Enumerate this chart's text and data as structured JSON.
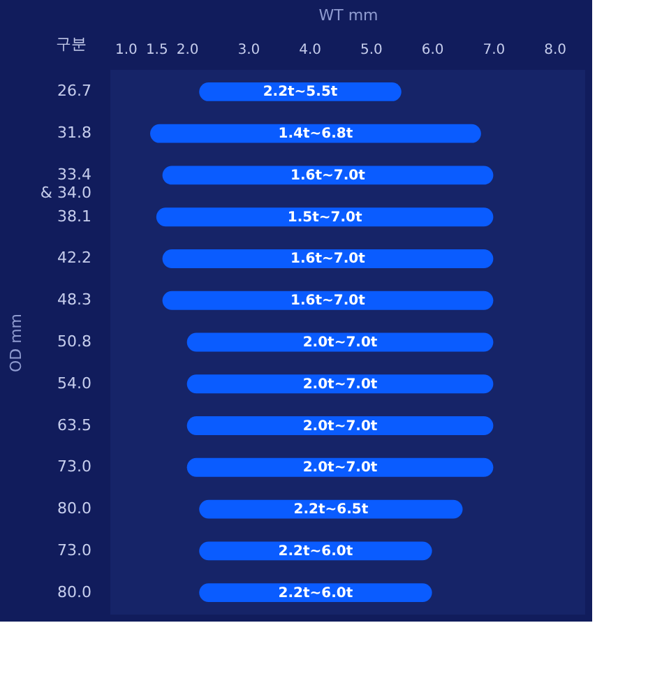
{
  "chart_data": {
    "type": "bar",
    "orientation": "horizontal",
    "xlabel": "WT mm",
    "ylabel": "OD mm",
    "annotations": [
      "구분",
      "2.2t~5.5t",
      "1.4t~6.8t",
      "1.6t~7.0t",
      "1.5t~7.0t",
      "1.6t~7.0t",
      "1.6t~7.0t",
      "2.0t~7.0t",
      "2.0t~7.0t",
      "2.0t~7.0t",
      "2.0t~7.0t",
      "2.2t~6.5t",
      "2.2t~6.0t",
      "2.2t~6.0t"
    ],
    "categories": [
      "26.7",
      "31.8",
      "33.4 & 34.0",
      "38.1",
      "42.2",
      "48.3",
      "50.8",
      "54.0",
      "63.5",
      "73.0",
      "80.0",
      "73.0",
      "80.0"
    ],
    "base": [
      2.2,
      1.4,
      1.6,
      1.5,
      1.6,
      1.6,
      2.0,
      2.0,
      2.0,
      2.0,
      2.2,
      2.2,
      2.2
    ],
    "values": [
      3.3,
      5.4,
      5.4,
      5.5,
      5.4,
      5.4,
      5.0,
      5.0,
      5.0,
      5.0,
      4.3,
      3.8,
      3.8
    ],
    "color": "#0a5cff",
    "xlim": [
      0.75,
      8.5
    ],
    "xticks": [
      {
        "value": 1,
        "label": "1.0"
      },
      {
        "value": 1.5,
        "label": "1.5"
      },
      {
        "value": 2,
        "label": "2.0"
      },
      {
        "value": 3,
        "label": "3.0"
      },
      {
        "value": 4,
        "label": "4.0"
      },
      {
        "value": 5,
        "label": "5.0"
      },
      {
        "value": 6,
        "label": "6.0"
      },
      {
        "value": 7,
        "label": "7.0"
      },
      {
        "value": 8,
        "label": "8.0"
      }
    ],
    "grid": false
  }
}
